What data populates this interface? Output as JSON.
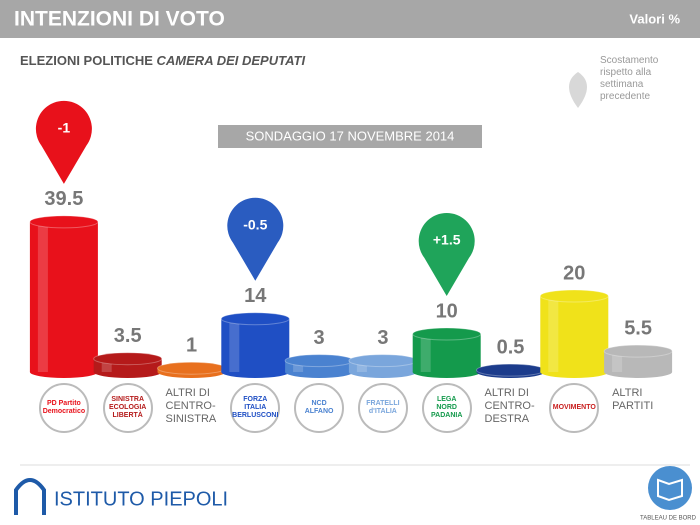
{
  "header": {
    "title": "INTENZIONI DI VOTO",
    "unit_note": "Valori %"
  },
  "subtitle": {
    "main": "ELEZIONI POLITICHE",
    "italic": "CAMERA DEI DEPUTATI"
  },
  "legend_note": "Scostamento rispetto alla settimana precedente",
  "chart_data": {
    "type": "bar",
    "title": "SONDAGGIO 17 NOVEMBRE 2014",
    "categories": [
      "PD Partito Democratico",
      "SINISTRA ECOLOGIA LIBERTÀ",
      "ALTRI DI CENTRO-SINISTRA",
      "FORZA ITALIA BERLUSCONI",
      "NCD ALFANO",
      "FRATELLI d'ITALIA",
      "LEGA NORD PADANIA",
      "ALTRI DI CENTRO-DESTRA",
      "MOVIMENTO",
      "ALTRI PARTITI"
    ],
    "logos": [
      true,
      true,
      false,
      true,
      true,
      true,
      true,
      false,
      true,
      false
    ],
    "values": [
      39.5,
      3.5,
      1,
      14,
      3,
      3,
      10,
      0.5,
      20,
      5.5
    ],
    "colors": [
      "#e8111b",
      "#b51a1a",
      "#e8701e",
      "#1f4fc4",
      "#4a82d0",
      "#7aa6dc",
      "#149a4c",
      "#1c3c8c",
      "#f0e21a",
      "#b8b8b8"
    ],
    "changes": [
      -1,
      null,
      null,
      -0.5,
      null,
      null,
      1.5,
      null,
      null,
      null
    ],
    "change_labels": [
      "-1",
      null,
      null,
      "-0.5",
      null,
      null,
      "+1.5",
      null,
      null,
      null
    ],
    "change_colors": [
      "#e8111b",
      null,
      null,
      "#2a5cc0",
      null,
      null,
      "#1fa45a",
      null,
      null,
      null
    ]
  },
  "footer": {
    "brand": "ISTITUTO PIEPOLI",
    "badge": "TABLEAU DE BORD"
  }
}
